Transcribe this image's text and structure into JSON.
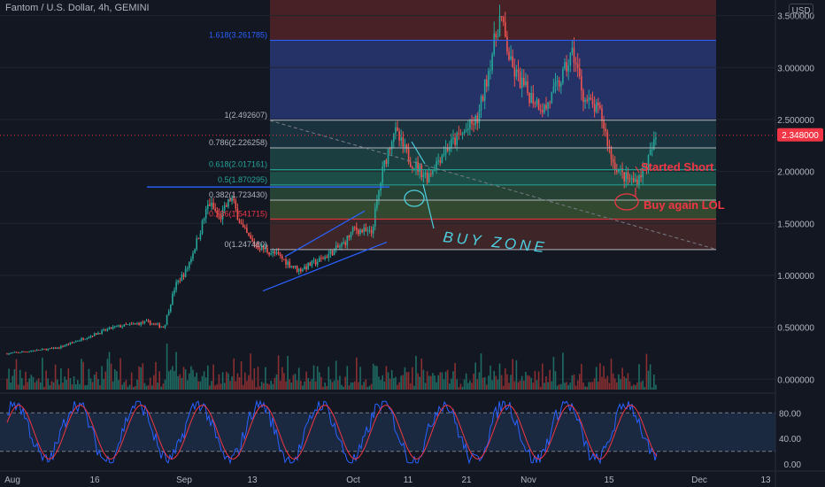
{
  "header": {
    "title": "Fantom / U.S. Dollar, 4h, GEMINI",
    "currency": "USD"
  },
  "colors": {
    "background": "#131722",
    "up": "#26a69a",
    "down": "#ef5350",
    "volume_up": "#1e6b63",
    "volume_down": "#8a2f31",
    "stoch_k": "#2962ff",
    "stoch_d": "#f23645",
    "price_tag": "#f23645",
    "annotation_red": "#f23645",
    "annotation_blue": "#2962ff",
    "buy_zone_ink": "#4dd0e1"
  },
  "chart_data": {
    "type": "candlestick",
    "symbol": "FTM/USD",
    "timeframe": "4h",
    "exchange": "GEMINI",
    "y_axis": {
      "ylim": [
        -0.1,
        3.65
      ],
      "ticks": [
        {
          "value": 3.5,
          "label": "3.500000"
        },
        {
          "value": 3.0,
          "label": "3.000000"
        },
        {
          "value": 2.5,
          "label": "2.500000"
        },
        {
          "value": 2.0,
          "label": "2.000000"
        },
        {
          "value": 1.5,
          "label": "1.500000"
        },
        {
          "value": 1.0,
          "label": "1.000000"
        },
        {
          "value": 0.5,
          "label": "0.500000"
        },
        {
          "value": 0.0,
          "label": "0.000000"
        }
      ]
    },
    "x_axis": {
      "ticks": [
        "Aug",
        "16",
        "Sep",
        "13",
        "Oct",
        "11",
        "21",
        "Nov",
        "15",
        "Dec",
        "13"
      ]
    },
    "price_path": [
      {
        "date": "Jul 31",
        "price": 0.24
      },
      {
        "date": "Aug 10",
        "price": 0.3
      },
      {
        "date": "Aug 20",
        "price": 0.5
      },
      {
        "date": "Aug 26",
        "price": 0.55
      },
      {
        "date": "Aug 29",
        "price": 0.5
      },
      {
        "date": "Aug 31",
        "price": 0.9
      },
      {
        "date": "Sep 2",
        "price": 1.05
      },
      {
        "date": "Sep 4",
        "price": 1.35
      },
      {
        "date": "Sep 6",
        "price": 1.7
      },
      {
        "date": "Sep 8",
        "price": 1.55
      },
      {
        "date": "Sep 10",
        "price": 1.75
      },
      {
        "date": "Sep 12",
        "price": 1.45
      },
      {
        "date": "Sep 14",
        "price": 1.3
      },
      {
        "date": "Sep 18",
        "price": 1.2
      },
      {
        "date": "Sep 22",
        "price": 1.05
      },
      {
        "date": "Sep 26",
        "price": 1.15
      },
      {
        "date": "Sep 30",
        "price": 1.3
      },
      {
        "date": "Oct 2",
        "price": 1.45
      },
      {
        "date": "Oct 5",
        "price": 1.4
      },
      {
        "date": "Oct 7",
        "price": 2.0
      },
      {
        "date": "Oct 9",
        "price": 2.4
      },
      {
        "date": "Oct 12",
        "price": 2.1
      },
      {
        "date": "Oct 15",
        "price": 1.95
      },
      {
        "date": "Oct 18",
        "price": 2.2
      },
      {
        "date": "Oct 21",
        "price": 2.35
      },
      {
        "date": "Oct 24",
        "price": 2.5
      },
      {
        "date": "Oct 26",
        "price": 3.0
      },
      {
        "date": "Oct 28",
        "price": 3.5
      },
      {
        "date": "Oct 30",
        "price": 3.0
      },
      {
        "date": "Nov 2",
        "price": 2.75
      },
      {
        "date": "Nov 5",
        "price": 2.6
      },
      {
        "date": "Nov 8",
        "price": 2.9
      },
      {
        "date": "Nov 10",
        "price": 3.15
      },
      {
        "date": "Nov 12",
        "price": 2.7
      },
      {
        "date": "Nov 15",
        "price": 2.55
      },
      {
        "date": "Nov 17",
        "price": 2.1
      },
      {
        "date": "Nov 19",
        "price": 1.95
      },
      {
        "date": "Nov 21",
        "price": 1.9
      },
      {
        "date": "Nov 23",
        "price": 2.05
      },
      {
        "date": "Nov 25",
        "price": 2.348
      }
    ],
    "last_price": {
      "value": 2.348,
      "label": "2.348000"
    },
    "fib_levels": [
      {
        "ratio": "1.618",
        "price": 3.261785,
        "label": "1.618(3.261785)",
        "color": "#2962ff"
      },
      {
        "ratio": "1",
        "price": 2.492607,
        "label": "1(2.492607)",
        "color": "#b2b5be"
      },
      {
        "ratio": "0.786",
        "price": 2.226258,
        "label": "0.786(2.226258)",
        "color": "#b2b5be"
      },
      {
        "ratio": "0.618",
        "price": 2.017161,
        "label": "0.618(2.017161)",
        "color": "#26a69a"
      },
      {
        "ratio": "0.5",
        "price": 1.870295,
        "label": "0.5(1.870295)",
        "color": "#26a69a"
      },
      {
        "ratio": "0.382",
        "price": 1.72343,
        "label": "0.382(1.723430)",
        "color": "#b2b5be"
      },
      {
        "ratio": "0.236",
        "price": 1.541715,
        "label": "0.236(1.541715)",
        "color": "#f23645"
      },
      {
        "ratio": "0",
        "price": 1.24748,
        "label": "0(1.247480)",
        "color": "#b2b5be"
      }
    ],
    "annotations": [
      {
        "text": "Started Short",
        "color": "#f23645"
      },
      {
        "text": "Buy again LOL",
        "color": "#f23645"
      },
      {
        "text": "BUY ZONE",
        "color": "#4dd0e1",
        "style": "handwritten"
      }
    ],
    "oscillator": {
      "name": "Stochastic",
      "ylim": [
        -8,
        108
      ],
      "ticks": [
        {
          "value": 80,
          "label": "80.00"
        },
        {
          "value": 40,
          "label": "40.00"
        },
        {
          "value": 0,
          "label": "0.00"
        }
      ],
      "bands": [
        20,
        80
      ]
    }
  }
}
